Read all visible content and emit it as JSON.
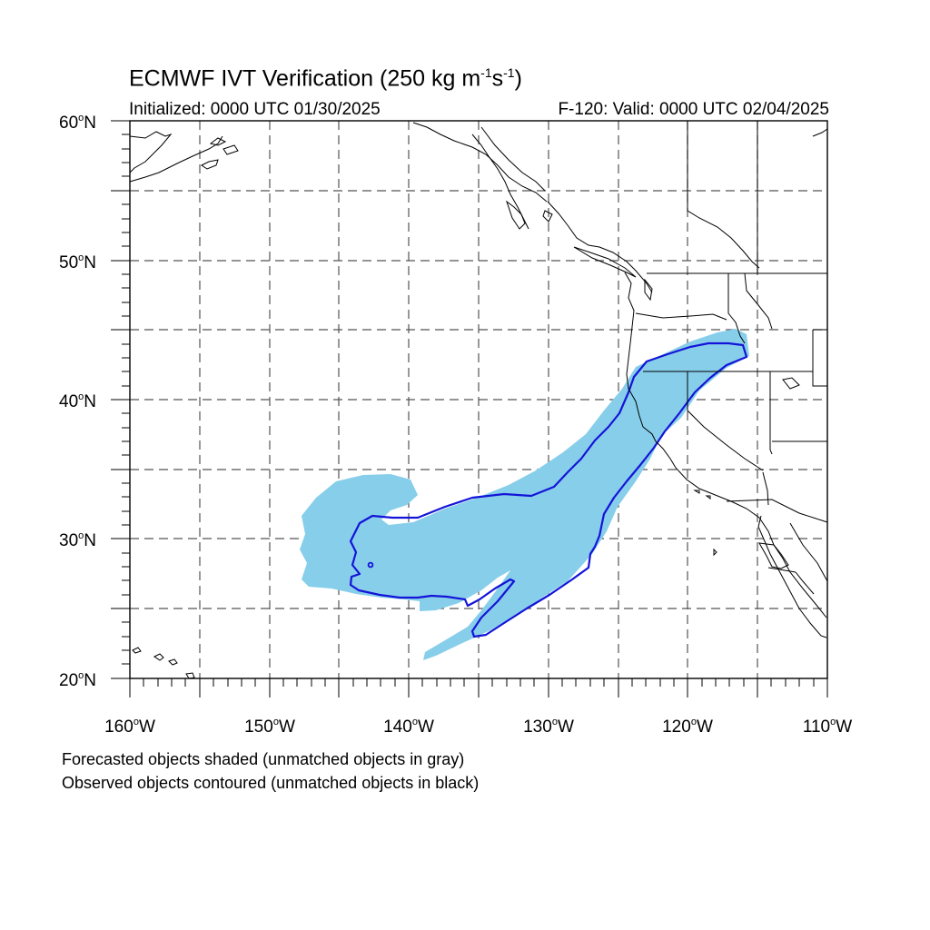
{
  "title": {
    "main": "ECMWF IVT Verification (250 kg m",
    "exp1": "-1",
    "mid": "s",
    "exp2": "-1",
    "end": ")"
  },
  "initialized": "Initialized: 0000 UTC 01/30/2025",
  "valid": "F-120: Valid: 0000 UTC 02/04/2025",
  "lat_labels": [
    "60oN",
    "50oN",
    "40oN",
    "30oN",
    "20oN"
  ],
  "lon_labels": [
    "160oW",
    "150oW",
    "140oW",
    "130oW",
    "120oW",
    "110oW"
  ],
  "footnotes": [
    "Forecasted objects shaded (unmatched objects in gray)",
    "Observed objects contoured (unmatched objects in black)"
  ],
  "colors": {
    "forecast_fill": "#87ceea",
    "observed_contour": "#1414d8",
    "coast": "#000000",
    "grid": "#555555"
  }
}
